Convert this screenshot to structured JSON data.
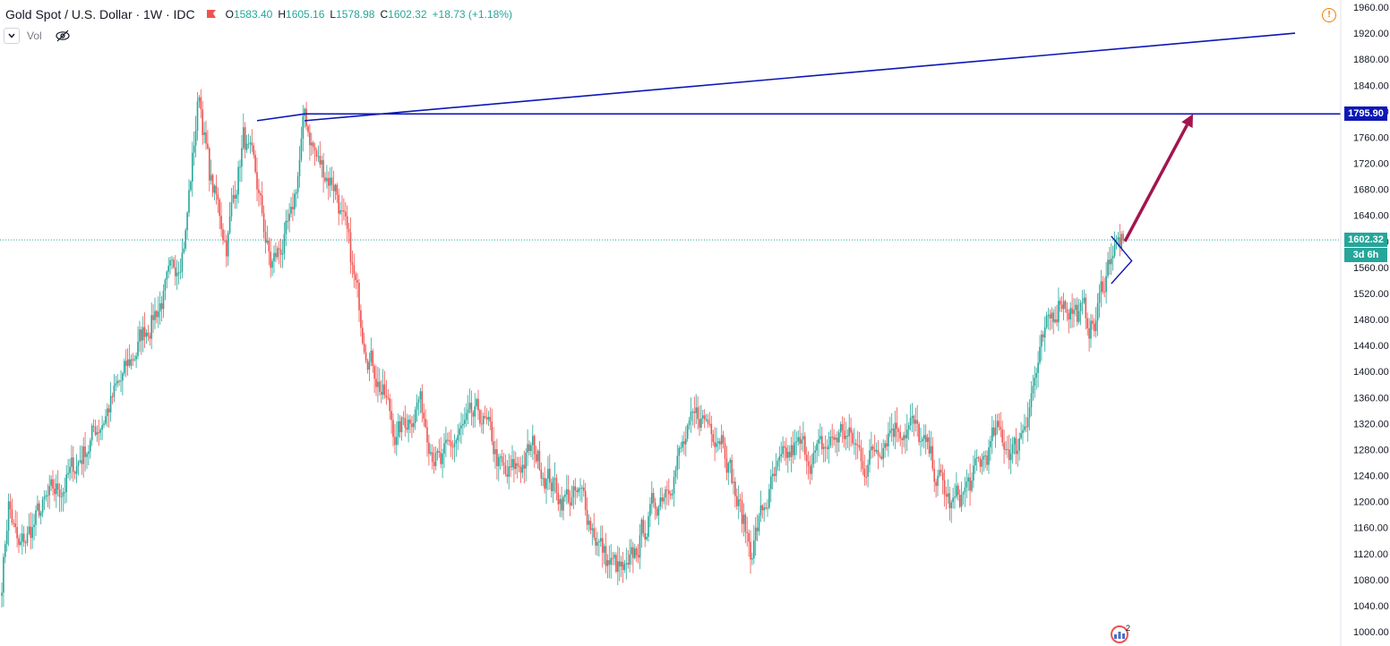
{
  "legend": {
    "title": "Gold Spot / U.S. Dollar · 1W · IDC",
    "open_label": "O",
    "open": "1583.40",
    "high_label": "H",
    "high": "1605.16",
    "low_label": "L",
    "low": "1578.98",
    "close_label": "C",
    "close": "1602.32",
    "change": "+18.73 (+1.18%)",
    "flag_icon": "red-flag-icon"
  },
  "volume": {
    "label": "Vol",
    "hide_icon": "eye-crossed-icon",
    "collapse_icon": "chevron-down-icon"
  },
  "warning_icon": "exclamation-icon",
  "price_tags": {
    "level": "1795.90",
    "last": "1602.32",
    "countdown": "3d 6h"
  },
  "badge": {
    "icon": "calendar-event-icon",
    "count": "2"
  },
  "colors": {
    "up": "#26a69a",
    "down": "#ef5350",
    "trendline": "#0d17b6",
    "arrow": "#a3154e",
    "last_price": "#26a69a",
    "level_tag": "#0d17b6"
  },
  "chart_data": {
    "type": "candlestick",
    "y_axis": {
      "ticks": [
        "1960.00",
        "1920.00",
        "1880.00",
        "1840.00",
        "1800.00",
        "1760.00",
        "1720.00",
        "1680.00",
        "1640.00",
        "1600.00",
        "1560.00",
        "1520.00",
        "1480.00",
        "1440.00",
        "1400.00",
        "1360.00",
        "1320.00",
        "1280.00",
        "1240.00",
        "1200.00",
        "1160.00",
        "1120.00",
        "1080.00",
        "1040.00",
        "1000.00"
      ],
      "range": [
        1000,
        1960
      ]
    },
    "anchors": [
      [
        0,
        1080
      ],
      [
        4,
        1200
      ],
      [
        10,
        1120
      ],
      [
        22,
        1180
      ],
      [
        40,
        1240
      ],
      [
        55,
        1310
      ],
      [
        70,
        1380
      ],
      [
        85,
        1470
      ],
      [
        100,
        1540
      ],
      [
        108,
        1620
      ],
      [
        116,
        1830
      ],
      [
        122,
        1700
      ],
      [
        132,
        1600
      ],
      [
        142,
        1760
      ],
      [
        150,
        1680
      ],
      [
        158,
        1560
      ],
      [
        170,
        1620
      ],
      [
        178,
        1790
      ],
      [
        186,
        1720
      ],
      [
        196,
        1690
      ],
      [
        204,
        1580
      ],
      [
        212,
        1470
      ],
      [
        220,
        1400
      ],
      [
        232,
        1300
      ],
      [
        245,
        1360
      ],
      [
        258,
        1250
      ],
      [
        268,
        1300
      ],
      [
        282,
        1330
      ],
      [
        296,
        1230
      ],
      [
        312,
        1280
      ],
      [
        328,
        1210
      ],
      [
        342,
        1200
      ],
      [
        355,
        1110
      ],
      [
        368,
        1080
      ],
      [
        376,
        1150
      ],
      [
        390,
        1230
      ],
      [
        410,
        1330
      ],
      [
        424,
        1310
      ],
      [
        432,
        1200
      ],
      [
        440,
        1130
      ],
      [
        452,
        1220
      ],
      [
        466,
        1280
      ],
      [
        480,
        1270
      ],
      [
        494,
        1310
      ],
      [
        508,
        1260
      ],
      [
        522,
        1320
      ],
      [
        534,
        1320
      ],
      [
        546,
        1260
      ],
      [
        558,
        1190
      ],
      [
        570,
        1230
      ],
      [
        584,
        1300
      ],
      [
        596,
        1280
      ],
      [
        610,
        1420
      ],
      [
        622,
        1520
      ],
      [
        632,
        1490
      ],
      [
        642,
        1470
      ],
      [
        652,
        1590
      ],
      [
        659,
        1600
      ]
    ],
    "candle_count": 660,
    "last_close": 1602.32,
    "horizontal_level": 1795.9,
    "trendline": {
      "from": [
        178,
        1785.5
      ],
      "to": [
        760,
        1920
      ]
    },
    "upper_line": {
      "from": [
        150,
        1785.5
      ],
      "to": [
        178,
        1795.9
      ]
    },
    "arrow": {
      "from": [
        660,
        1600
      ],
      "to": [
        700,
        1795.9
      ]
    },
    "triangle_points": [
      [
        652,
        1608
      ],
      [
        664,
        1570
      ],
      [
        652,
        1535
      ]
    ]
  }
}
